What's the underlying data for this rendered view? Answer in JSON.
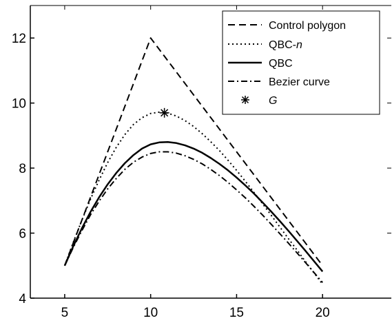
{
  "chart_data": {
    "type": "line",
    "title": "",
    "xlabel": "",
    "ylabel": "",
    "xlim": [
      3,
      24
    ],
    "ylim": [
      4,
      13
    ],
    "xticks": [
      5,
      10,
      15,
      20
    ],
    "yticks": [
      4,
      6,
      8,
      10,
      12
    ],
    "grid": false,
    "legend_position": "top-right",
    "series": [
      {
        "name": "Control polygon",
        "style": "dashed",
        "x": [
          5,
          10,
          20
        ],
        "y": [
          5,
          12,
          5
        ]
      },
      {
        "name": "QBC-n",
        "style": "dotted",
        "x": [
          5,
          5.5,
          6,
          6.5,
          7,
          7.5,
          8,
          8.5,
          9,
          9.5,
          10,
          10.5,
          11,
          11.5,
          12,
          12.5,
          13,
          13.5,
          14,
          14.5,
          15,
          15.5,
          16,
          16.5,
          17,
          17.5,
          18,
          18.5,
          19,
          19.5,
          20
        ],
        "y": [
          5.0,
          5.72,
          6.4,
          7.04,
          7.63,
          8.17,
          8.64,
          9.03,
          9.34,
          9.55,
          9.68,
          9.72,
          9.69,
          9.6,
          9.46,
          9.28,
          9.06,
          8.81,
          8.54,
          8.24,
          7.93,
          7.6,
          7.26,
          6.91,
          6.56,
          6.2,
          5.84,
          5.49,
          5.13,
          4.78,
          4.43
        ]
      },
      {
        "name": "QBC",
        "style": "solid",
        "x": [
          5,
          5.5,
          6,
          6.5,
          7,
          7.5,
          8,
          8.5,
          9,
          9.5,
          10,
          10.5,
          11,
          11.5,
          12,
          12.5,
          13,
          13.5,
          14,
          14.5,
          15,
          15.5,
          16,
          16.5,
          17,
          17.5,
          18,
          18.5,
          19,
          19.5,
          20
        ],
        "y": [
          5.0,
          5.6,
          6.15,
          6.65,
          7.1,
          7.5,
          7.85,
          8.15,
          8.4,
          8.6,
          8.73,
          8.79,
          8.8,
          8.77,
          8.7,
          8.6,
          8.47,
          8.31,
          8.13,
          7.93,
          7.71,
          7.47,
          7.22,
          6.95,
          6.67,
          6.38,
          6.08,
          5.77,
          5.46,
          5.14,
          4.82
        ]
      },
      {
        "name": "Bezier curve",
        "style": "dashdot",
        "x": [
          5,
          5.5,
          6,
          6.5,
          7,
          7.5,
          8,
          8.5,
          9,
          9.5,
          10,
          10.5,
          11,
          11.5,
          12,
          12.5,
          13,
          13.5,
          14,
          14.5,
          15,
          15.5,
          16,
          16.5,
          17,
          17.5,
          18,
          18.5,
          19,
          19.5,
          20
        ],
        "y": [
          5.0,
          5.56,
          6.08,
          6.56,
          6.98,
          7.36,
          7.68,
          7.96,
          8.18,
          8.34,
          8.45,
          8.5,
          8.5,
          8.46,
          8.38,
          8.27,
          8.13,
          7.96,
          7.77,
          7.56,
          7.33,
          7.09,
          6.83,
          6.56,
          6.28,
          5.99,
          5.7,
          5.4,
          5.1,
          4.79,
          4.48
        ]
      },
      {
        "name": "G",
        "style": "marker-star",
        "x": [
          10.8
        ],
        "y": [
          9.7
        ]
      }
    ]
  },
  "legend": {
    "entries": [
      {
        "prefix": "Control polygon",
        "italic": ""
      },
      {
        "prefix": "QBC-",
        "italic": "n"
      },
      {
        "prefix": "QBC",
        "italic": ""
      },
      {
        "prefix": "Bezier curve",
        "italic": ""
      },
      {
        "prefix": "",
        "italic": "G"
      }
    ]
  }
}
